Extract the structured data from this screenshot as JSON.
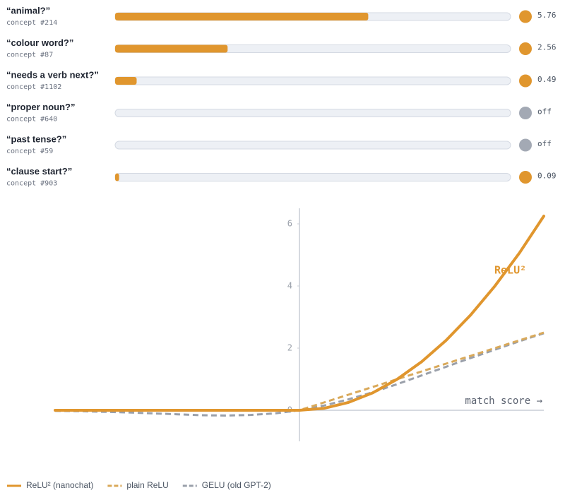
{
  "concepts": {
    "xlim": [
      0,
      9
    ],
    "on_color": "#e0962e",
    "off_color": "#a3a9b4",
    "track_color": "#edf0f5",
    "items": [
      {
        "label": "“animal?”",
        "id": "concept #214",
        "value": 5.76,
        "value_label": "5.76"
      },
      {
        "label": "“colour word?”",
        "id": "concept #87",
        "value": 2.56,
        "value_label": "2.56"
      },
      {
        "label": "“needs a verb next?”",
        "id": "concept #1102",
        "value": 0.49,
        "value_label": "0.49"
      },
      {
        "label": "“proper noun?”",
        "id": "concept #640",
        "value": 0,
        "value_label": "off"
      },
      {
        "label": "“past tense?”",
        "id": "concept #59",
        "value": 0,
        "value_label": "off"
      },
      {
        "label": "“clause start?”",
        "id": "concept #903",
        "value": 0.09,
        "value_label": "0.09"
      }
    ]
  },
  "chart_data": {
    "type": "line",
    "x": [
      -2.5,
      -2.25,
      -2,
      -1.75,
      -1.5,
      -1.25,
      -1,
      -0.75,
      -0.5,
      -0.25,
      0,
      0.25,
      0.5,
      0.75,
      1,
      1.25,
      1.5,
      1.75,
      2,
      2.25,
      2.5
    ],
    "series": [
      {
        "name": "ReLU² (nanochat)",
        "color": "#e0962e",
        "dashed": false,
        "values": [
          0,
          0,
          0,
          0,
          0,
          0,
          0,
          0,
          0,
          0,
          0,
          0.0625,
          0.25,
          0.5625,
          1,
          1.5625,
          2.25,
          3.0625,
          4,
          5.0625,
          6.25
        ]
      },
      {
        "name": "plain ReLU",
        "color": "#d9a95a",
        "dashed": true,
        "values": [
          0,
          0,
          0,
          0,
          0,
          0,
          0,
          0,
          0,
          0,
          0,
          0.25,
          0.5,
          0.75,
          1,
          1.25,
          1.5,
          1.75,
          2,
          2.25,
          2.5
        ]
      },
      {
        "name": "GELU (old GPT-2)",
        "color": "#9aa0aa",
        "dashed": true,
        "values": [
          -0.02,
          -0.03,
          -0.05,
          -0.07,
          -0.1,
          -0.13,
          -0.16,
          -0.17,
          -0.15,
          -0.1,
          0,
          0.15,
          0.35,
          0.58,
          0.84,
          1.12,
          1.4,
          1.68,
          1.95,
          2.22,
          2.48
        ]
      }
    ],
    "xlim": [
      -2.5,
      2.5
    ],
    "ylim": [
      -1,
      6.5
    ],
    "yticks": [
      0,
      2,
      4,
      6
    ],
    "annotations": [
      "ReLU²",
      "match score →"
    ]
  }
}
